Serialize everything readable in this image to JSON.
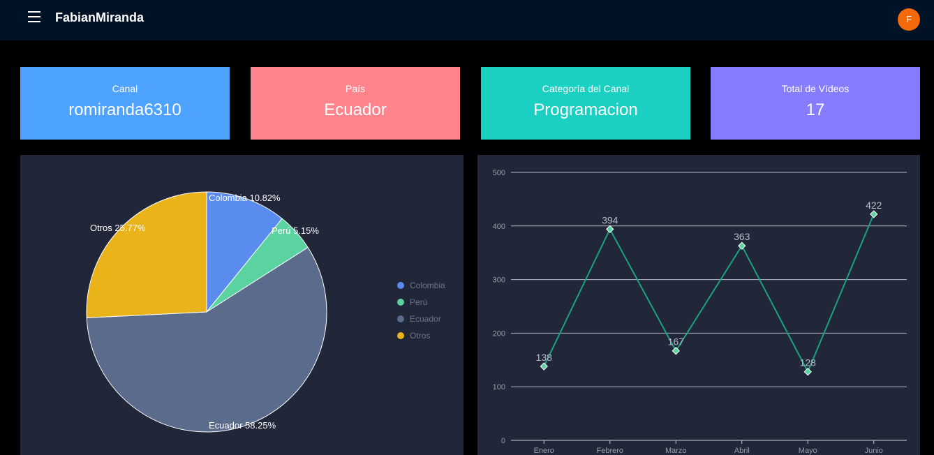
{
  "header": {
    "brand": "FabianMiranda",
    "avatar_initial": "F",
    "avatar_color": "#f26a0a",
    "menu_icon": "hamburger-menu-icon"
  },
  "cards": [
    {
      "label": "Canal",
      "value": "romiranda6310",
      "color": "#4da3ff"
    },
    {
      "label": "País",
      "value": "Ecuador",
      "color": "#ff848b"
    },
    {
      "label": "Categoría del Canal",
      "value": "Programacion",
      "color": "#19d0c2"
    },
    {
      "label": "Total de Vídeos",
      "value": "17",
      "color": "#867cff"
    }
  ],
  "chart_data": [
    {
      "type": "pie",
      "slices": [
        {
          "name": "Colombia",
          "value": 10.82,
          "label": "Colombia 10.82%",
          "color": "#5a8bee"
        },
        {
          "name": "Perú",
          "value": 5.15,
          "label": "Perú 5.15%",
          "color": "#5ad3a0"
        },
        {
          "name": "Ecuador",
          "value": 58.25,
          "label": "Ecuador 58.25%",
          "color": "#5a6b8c"
        },
        {
          "name": "Otros",
          "value": 25.77,
          "label": "Otros 25.77%",
          "color": "#eab31a"
        }
      ],
      "legend": [
        "Colombia",
        "Perú",
        "Ecuador",
        "Otros"
      ],
      "legend_position": "right"
    },
    {
      "type": "line",
      "categories": [
        "Enero",
        "Febrero",
        "Marzo",
        "Abril",
        "Mayo",
        "Junio"
      ],
      "values": [
        138,
        394,
        167,
        363,
        128,
        422
      ],
      "ylim": [
        0,
        500
      ],
      "yticks": [
        0,
        100,
        200,
        300,
        400,
        500
      ],
      "grid": true,
      "line_color": "#1aa47c",
      "marker": "diamond"
    }
  ]
}
